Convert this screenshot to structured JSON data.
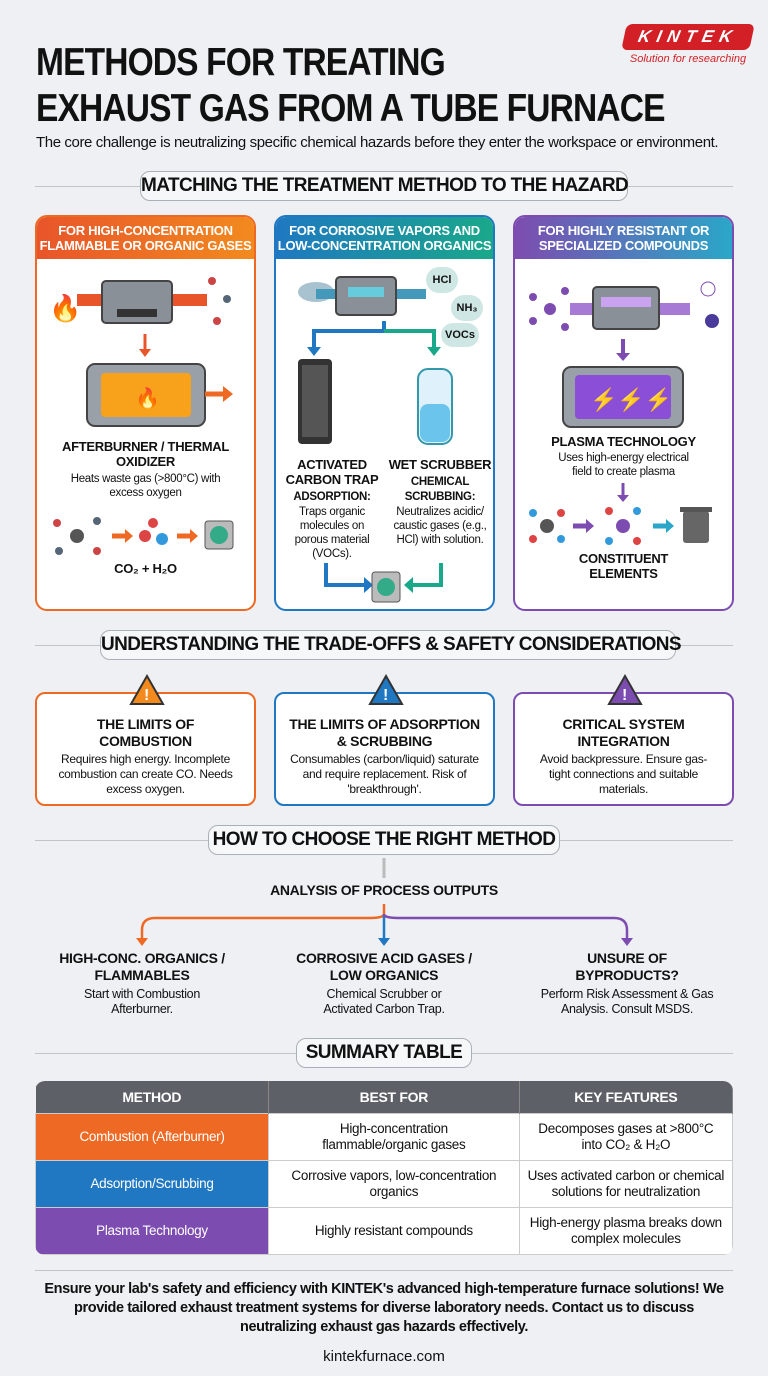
{
  "header": {
    "title_line1": "METHODS FOR TREATING",
    "title_line2": "EXHAUST GAS FROM A TUBE FURNACE",
    "subtitle": "The core challenge is neutralizing specific chemical hazards before they enter the workspace or environment.",
    "logo_text": "KINTEK",
    "logo_tagline": "Solution for researching"
  },
  "colors": {
    "orange": "#ee6a24",
    "blue": "#1f78c1",
    "teal": "#1aa88a",
    "purple": "#7d4cb0",
    "brand_red": "#d32027"
  },
  "section1": {
    "title": "MATCHING THE TREATMENT METHOD TO THE HAZARD",
    "cards": [
      {
        "header": "FOR HIGH-CONCENTRATION FLAMMABLE OR ORGANIC GASES",
        "name": "AFTERBURNER / THERMAL OXIDIZER",
        "desc": "Heats waste gas (>800°C) with excess oxygen",
        "products": "CO₂ + H₂O"
      },
      {
        "header": "FOR CORROSIVE VAPORS AND LOW-CONCENTRATION ORGANICS",
        "gases": [
          "HCl",
          "NH₃",
          "VOCs"
        ],
        "left": {
          "name": "ACTIVATED CARBON TRAP",
          "sub": "ADSORPTION:",
          "desc": "Traps organic molecules on porous material (VOCs)."
        },
        "right": {
          "name": "WET SCRUBBER",
          "sub": "CHEMICAL SCRUBBING:",
          "desc": "Neutralizes acidic/ caustic gases (e.g., HCl) with solution."
        }
      },
      {
        "header": "FOR HIGHLY RESISTANT OR SPECIALIZED COMPOUNDS",
        "name": "PLASMA TECHNOLOGY",
        "desc": "Uses high-energy electrical field to create plasma",
        "result": "CONSTITUENT ELEMENTS"
      }
    ]
  },
  "section2": {
    "title": "UNDERSTANDING THE TRADE-OFFS & SAFETY CONSIDERATIONS",
    "cards": [
      {
        "title": "THE LIMITS OF COMBUSTION",
        "desc": "Requires high energy. Incomplete combustion can create CO. Needs excess oxygen."
      },
      {
        "title": "THE LIMITS OF ADSORPTION & SCRUBBING",
        "desc": "Consumables (carbon/liquid) saturate and require replacement. Risk of 'breakthrough'."
      },
      {
        "title": "CRITICAL SYSTEM INTEGRATION",
        "desc": "Avoid backpressure. Ensure gas-tight connections and suitable materials."
      }
    ]
  },
  "section3": {
    "title": "HOW TO CHOOSE THE RIGHT METHOD",
    "root": "ANALYSIS OF PROCESS OUTPUTS",
    "options": [
      {
        "title": "HIGH-CONC. ORGANICS / FLAMMABLES",
        "desc": "Start with Combustion Afterburner."
      },
      {
        "title": "CORROSIVE ACID GASES / LOW ORGANICS",
        "desc": "Chemical Scrubber or Activated Carbon Trap."
      },
      {
        "title": "UNSURE OF BYPRODUCTS?",
        "desc": "Perform Risk Assessment & Gas Analysis. Consult MSDS."
      }
    ]
  },
  "summary": {
    "title": "SUMMARY TABLE",
    "headers": [
      "METHOD",
      "BEST FOR",
      "KEY FEATURES"
    ],
    "rows": [
      [
        "Combustion (Afterburner)",
        "High-concentration flammable/organic gases",
        "Decomposes gases at >800°C into CO₂ & H₂O"
      ],
      [
        "Adsorption/Scrubbing",
        "Corrosive vapors, low-concentration organics",
        "Uses activated carbon or chemical solutions for neutralization"
      ],
      [
        "Plasma Technology",
        "Highly resistant compounds",
        "High-energy plasma breaks down complex molecules"
      ]
    ]
  },
  "footer": {
    "text": "Ensure your lab's safety and efficiency with KINTEK's advanced high-temperature furnace solutions! We provide tailored exhaust treatment systems for diverse laboratory needs. Contact us to discuss neutralizing exhaust gas hazards effectively.",
    "url": "kintekfurnace.com"
  }
}
